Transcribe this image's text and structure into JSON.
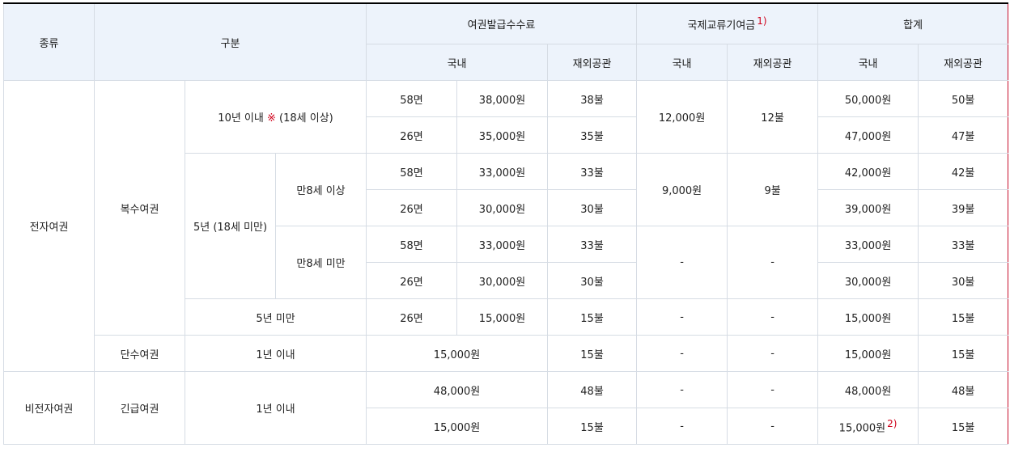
{
  "header": {
    "kind": "종류",
    "category": "구분",
    "issue_fee": "여권발급수수료",
    "intl_fund": "국제교류기여금",
    "intl_fund_note": "1)",
    "total": "합계",
    "domestic": "국내",
    "overseas": "재외공관"
  },
  "groups": {
    "electronic": "전자여권",
    "non_electronic": "비전자여권",
    "multiple": "복수여권",
    "single": "단수여권",
    "emergency": "긴급여권"
  },
  "periods": {
    "ten_years_prefix": "10년 이내 ",
    "ten_years_mark": "※",
    "ten_years_suffix": " (18세 이상)",
    "five_years": "5년 (18세 미만)",
    "age_over8": "만8세 이상",
    "age_under8": "만8세 미만",
    "under5": "5년 미만",
    "one_year": "1년 이내"
  },
  "rows": {
    "r1": {
      "pages": "58면",
      "dom": "38,000원",
      "ovs": "38불",
      "tot_dom": "50,000원",
      "tot_ovs": "50불"
    },
    "r2": {
      "pages": "26면",
      "dom": "35,000원",
      "ovs": "35불",
      "tot_dom": "47,000원",
      "tot_ovs": "47불"
    },
    "r3": {
      "pages": "58면",
      "dom": "33,000원",
      "ovs": "33불",
      "tot_dom": "42,000원",
      "tot_ovs": "42불"
    },
    "r4": {
      "pages": "26면",
      "dom": "30,000원",
      "ovs": "30불",
      "tot_dom": "39,000원",
      "tot_ovs": "39불"
    },
    "r5": {
      "pages": "58면",
      "dom": "33,000원",
      "ovs": "33불",
      "tot_dom": "33,000원",
      "tot_ovs": "33불"
    },
    "r6": {
      "pages": "26면",
      "dom": "30,000원",
      "ovs": "30불",
      "tot_dom": "30,000원",
      "tot_ovs": "30불"
    },
    "r7": {
      "pages": "26면",
      "dom": "15,000원",
      "ovs": "15불",
      "tot_dom": "15,000원",
      "tot_ovs": "15불"
    },
    "r8": {
      "dom": "15,000원",
      "ovs": "15불",
      "tot_dom": "15,000원",
      "tot_ovs": "15불"
    },
    "r9": {
      "dom": "48,000원",
      "ovs": "48불",
      "tot_dom": "48,000원",
      "tot_ovs": "48불"
    },
    "r10": {
      "dom": "15,000원",
      "ovs": "15불",
      "tot_dom": "15,000원",
      "tot_dom_note": "2)",
      "tot_ovs": "15불"
    }
  },
  "fund": {
    "g1_dom": "12,000원",
    "g1_ovs": "12불",
    "g2_dom": "9,000원",
    "g2_ovs": "9불",
    "dash": "-"
  }
}
